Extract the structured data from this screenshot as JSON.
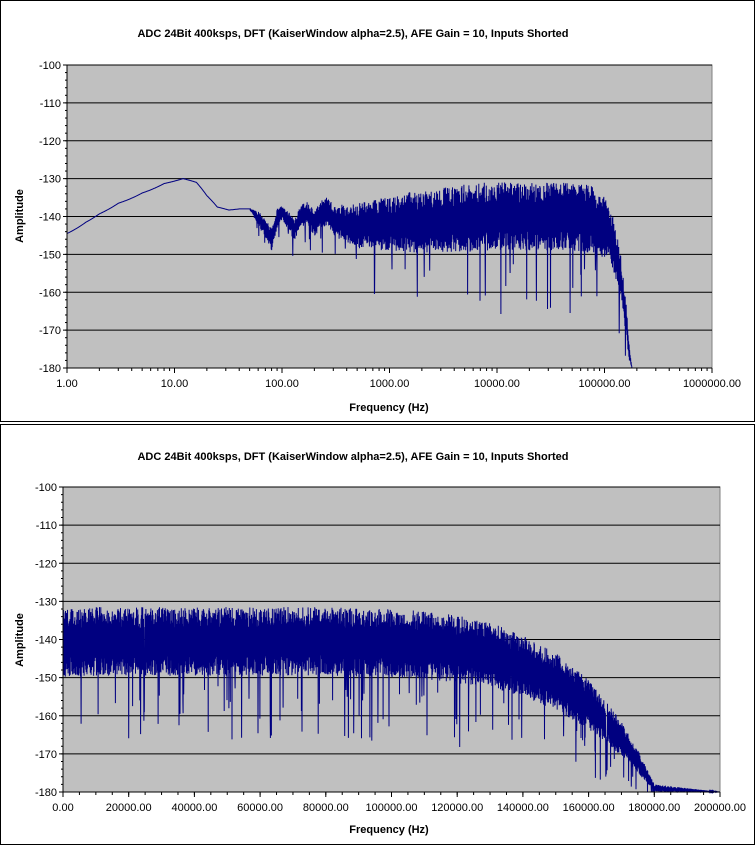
{
  "chart_data": [
    {
      "type": "line",
      "title": "ADC 24Bit 400ksps, DFT (KaiserWindow alpha=2.5), AFE Gain = 10, Inputs Shorted",
      "xlabel": "Frequency (Hz)",
      "ylabel": "Amplitude",
      "xscale": "log",
      "xlim": [
        1,
        1000000
      ],
      "ylim": [
        -180,
        -100
      ],
      "x_ticks": [
        "1.00",
        "10.00",
        "100.00",
        "1000.00",
        "10000.00",
        "100000.00",
        "1000000.00"
      ],
      "y_ticks": [
        "-100",
        "-110",
        "-120",
        "-130",
        "-140",
        "-150",
        "-160",
        "-170",
        "-180"
      ],
      "grid": "horizontal",
      "plot_background": "#c0c0c0",
      "series_color": "#000080",
      "series": [
        {
          "x": [
            1,
            1.5,
            2,
            3,
            5,
            8,
            12,
            16,
            20,
            25,
            32,
            40,
            50,
            60,
            70,
            80,
            90,
            100,
            115,
            130,
            150,
            170,
            200,
            230,
            260,
            300,
            350,
            400,
            500,
            600,
            800,
            1000,
            1500,
            2000,
            3000,
            5000,
            8000,
            10000,
            15000,
            20000,
            30000,
            50000,
            80000,
            100000,
            120000,
            140000,
            160000,
            170000,
            180000,
            200000
          ],
          "y_mean": [
            -144.5,
            -141.5,
            -139.3,
            -136.5,
            -133.8,
            -131.3,
            -130.0,
            -131.0,
            -134.5,
            -137.5,
            -138.3,
            -138.0,
            -138.0,
            -140.5,
            -143.0,
            -146.0,
            -140.5,
            -139.0,
            -141.0,
            -143.5,
            -140.0,
            -139.0,
            -142.0,
            -139.5,
            -138.5,
            -141.0,
            -141.5,
            -142.0,
            -142.5,
            -142.0,
            -142.0,
            -142.0,
            -141.5,
            -141.5,
            -141.0,
            -140.5,
            -140.0,
            -140.0,
            -140.0,
            -140.0,
            -140.0,
            -140.0,
            -141.0,
            -143.0,
            -147.0,
            -155.0,
            -168.0,
            -176.0,
            -180.0,
            -180.0
          ],
          "spread_db": [
            0,
            0,
            0,
            0,
            0,
            0,
            0,
            0,
            0,
            0,
            0,
            0,
            0,
            2,
            2.5,
            3,
            2.5,
            2,
            2.5,
            3,
            3,
            3,
            3.5,
            3.5,
            4,
            4,
            5,
            5,
            6,
            6,
            7,
            7,
            8,
            8,
            8.5,
            9,
            9,
            9,
            9,
            9,
            9,
            9,
            9,
            8,
            7,
            6,
            4,
            2,
            0,
            0
          ]
        }
      ]
    },
    {
      "type": "line",
      "title": "ADC 24Bit 400ksps, DFT (KaiserWindow alpha=2.5), AFE Gain = 10, Inputs Shorted",
      "xlabel": "Frequency (Hz)",
      "ylabel": "Amplitude",
      "xscale": "linear",
      "xlim": [
        0,
        200000
      ],
      "ylim": [
        -180,
        -100
      ],
      "x_ticks": [
        "0.00",
        "20000.00",
        "40000.00",
        "60000.00",
        "80000.00",
        "100000.00",
        "120000.00",
        "140000.00",
        "160000.00",
        "180000.00",
        "200000.00"
      ],
      "y_ticks": [
        "-100",
        "-110",
        "-120",
        "-130",
        "-140",
        "-150",
        "-160",
        "-170",
        "-180"
      ],
      "grid": "horizontal",
      "plot_background": "#c0c0c0",
      "series_color": "#000080",
      "series": [
        {
          "x": [
            0,
            10000,
            20000,
            40000,
            60000,
            80000,
            100000,
            110000,
            120000,
            130000,
            140000,
            150000,
            160000,
            170000,
            175000,
            180000,
            200000
          ],
          "y_mean": [
            -141,
            -140.5,
            -140.5,
            -140.5,
            -140.5,
            -140.5,
            -141,
            -141.5,
            -142.5,
            -144,
            -147,
            -151,
            -157,
            -166,
            -172,
            -179,
            -180
          ],
          "spread_db": [
            9,
            9,
            9,
            9,
            9,
            9,
            9,
            9,
            9,
            8.5,
            8,
            7.5,
            6.5,
            4.5,
            3,
            1,
            0
          ]
        }
      ]
    }
  ]
}
